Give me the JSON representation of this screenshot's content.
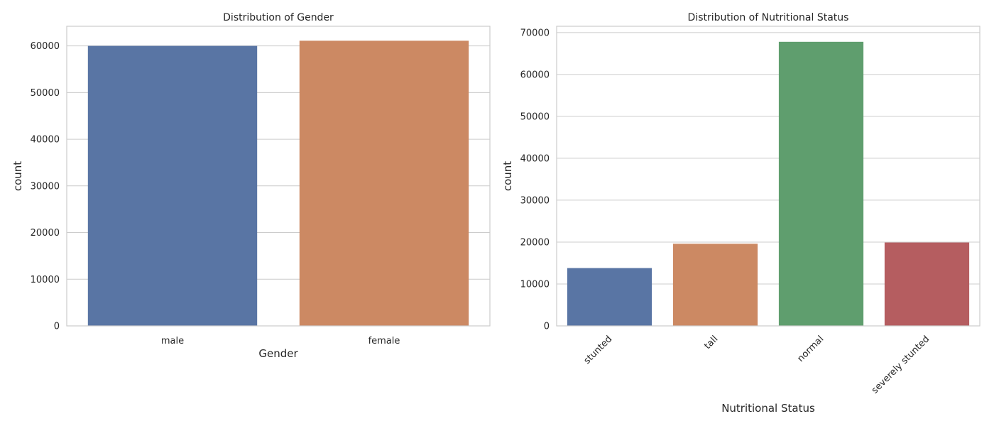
{
  "chart_data": [
    {
      "type": "bar",
      "title": "Distribution of Gender",
      "xlabel": "Gender",
      "ylabel": "count",
      "categories": [
        "male",
        "female"
      ],
      "values": [
        60000,
        61100
      ],
      "colors": [
        "#5975a4",
        "#cc8963"
      ],
      "ylim": [
        0,
        64200
      ],
      "yticks": [
        0,
        10000,
        20000,
        30000,
        40000,
        50000,
        60000
      ],
      "grid": "y",
      "xtick_rotation": 0
    },
    {
      "type": "bar",
      "title": "Distribution of Nutritional Status",
      "xlabel": "Nutritional Status",
      "ylabel": "count",
      "categories": [
        "stunted",
        "tall",
        "normal",
        "severely stunted"
      ],
      "values": [
        13800,
        19600,
        67800,
        19900
      ],
      "colors": [
        "#5975a4",
        "#cc8963",
        "#5f9e6e",
        "#b55d60"
      ],
      "ylim": [
        0,
        71500
      ],
      "yticks": [
        0,
        10000,
        20000,
        30000,
        40000,
        50000,
        60000,
        70000
      ],
      "grid": "y",
      "xtick_rotation": -45
    }
  ]
}
